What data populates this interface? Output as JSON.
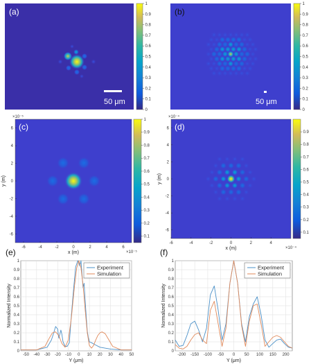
{
  "colors": {
    "bg_dark": "#3a2fa8",
    "bg_mid": "#3e3fcd",
    "experiment": "#4a90c8",
    "simulation": "#e0895a"
  },
  "chart_data": [
    {
      "id": "a",
      "type": "heatmap",
      "label": "(a)",
      "scale_bar": "50 μm",
      "colorbar_ticks": [
        "0",
        "0.1",
        "0.2",
        "0.3",
        "0.4",
        "0.5",
        "0.6",
        "0.7",
        "0.8",
        "0.9",
        "1"
      ],
      "clim": [
        0,
        1
      ]
    },
    {
      "id": "b",
      "type": "heatmap",
      "label": "(b)",
      "scale_bar": "50 μm",
      "colorbar_ticks": [
        "0",
        "0.1",
        "0.2",
        "0.3",
        "0.4",
        "0.5",
        "0.6",
        "0.7",
        "0.8",
        "0.9",
        "1"
      ],
      "clim": [
        0,
        1
      ]
    },
    {
      "id": "c",
      "type": "heatmap",
      "label": "(c)",
      "xlabel": "x (m)",
      "ylabel": "y (m)",
      "x_exponent": "×10⁻⁵",
      "y_exponent": "×10⁻⁵",
      "x_ticks": [
        "-6",
        "-4",
        "-2",
        "0",
        "2",
        "4",
        "6"
      ],
      "y_ticks": [
        "6",
        "4",
        "2",
        "0",
        "-2",
        "-4",
        "-6"
      ],
      "colorbar_ticks": [
        "0.1",
        "0.2",
        "0.3",
        "0.4",
        "0.5",
        "0.6",
        "0.7",
        "0.8",
        "0.9",
        "1"
      ],
      "xlim": [
        -7,
        7
      ],
      "ylim": [
        -7,
        7
      ],
      "clim": [
        0.05,
        1
      ]
    },
    {
      "id": "d",
      "type": "heatmap",
      "label": "(d)",
      "xlabel": "x (m)",
      "ylabel": "y (m)",
      "x_exponent": "×10⁻⁴",
      "y_exponent": "×10⁻⁴",
      "x_ticks": [
        "-6",
        "-4",
        "-2",
        "0",
        "2",
        "4"
      ],
      "y_ticks": [
        "6",
        "4",
        "2",
        "0",
        "-2",
        "-4",
        "-6"
      ],
      "colorbar_ticks": [
        "0.1",
        "0.2",
        "0.3",
        "0.4",
        "0.5",
        "0.6",
        "0.7",
        "0.8",
        "0.9"
      ],
      "xlim": [
        -6,
        6
      ],
      "ylim": [
        -7,
        7
      ],
      "clim": [
        0.05,
        1
      ]
    },
    {
      "id": "e",
      "type": "line",
      "label": "(e)",
      "xlabel": "Y (μm)",
      "ylabel": "Normalized Intensity",
      "xlim": [
        -55,
        50
      ],
      "ylim": [
        0,
        1
      ],
      "x_ticks": [
        "-50",
        "-40",
        "-30",
        "-20",
        "-10",
        "0",
        "10",
        "20",
        "30",
        "40",
        "50"
      ],
      "y_ticks": [
        "0",
        "0.1",
        "0.2",
        "0.3",
        "0.4",
        "0.5",
        "0.6",
        "0.7",
        "0.8",
        "0.9",
        "1"
      ],
      "legend_position": "top-right",
      "series": [
        {
          "name": "Experiment",
          "x": [
            -55,
            -40,
            -30,
            -26,
            -24,
            -22,
            -20,
            -19,
            -17,
            -16,
            -15,
            -13,
            -11,
            -9,
            -7,
            -5,
            -3,
            -1,
            0,
            1,
            2,
            3,
            4,
            5,
            6,
            7,
            8,
            9,
            10,
            12,
            15,
            20,
            30,
            40,
            50
          ],
          "y": [
            0.01,
            0.01,
            0.04,
            0.12,
            0.19,
            0.27,
            0.24,
            0.14,
            0.23,
            0.18,
            0.1,
            0.05,
            0.05,
            0.09,
            0.4,
            0.68,
            0.93,
            1,
            0.98,
            0.94,
            1,
            0.85,
            0.7,
            0.75,
            0.55,
            0.38,
            0.22,
            0.15,
            0.1,
            0.09,
            0.07,
            0.04,
            0.02,
            0.01,
            0.01
          ]
        },
        {
          "name": "Simulation",
          "x": [
            -55,
            -40,
            -32,
            -28,
            -25,
            -22,
            -19,
            -16,
            -13,
            -10,
            -7,
            -4,
            -2,
            0,
            2,
            4,
            6,
            8,
            10,
            12,
            14,
            16,
            18,
            20,
            22,
            25,
            28,
            32,
            40,
            50
          ],
          "y": [
            0.01,
            0.01,
            0.05,
            0.14,
            0.2,
            0.21,
            0.17,
            0.08,
            0.04,
            0.12,
            0.37,
            0.73,
            0.92,
            1,
            0.92,
            0.73,
            0.45,
            0.2,
            0.06,
            0.03,
            0.06,
            0.12,
            0.17,
            0.2,
            0.21,
            0.19,
            0.13,
            0.05,
            0.01,
            0.01
          ]
        }
      ]
    },
    {
      "id": "f",
      "type": "line",
      "label": "(f)",
      "xlabel": "Y (μm)",
      "ylabel": "Normalized Intensity",
      "xlim": [
        -225,
        225
      ],
      "ylim": [
        0,
        1
      ],
      "x_ticks": [
        "-200",
        "-150",
        "-100",
        "-50",
        "0",
        "50",
        "100",
        "150",
        "200"
      ],
      "y_ticks": [
        "0",
        "0.1",
        "0.2",
        "0.3",
        "0.4",
        "0.5",
        "0.6",
        "0.7",
        "0.8",
        "0.9",
        "1"
      ],
      "legend_position": "top-right",
      "series": [
        {
          "name": "Experiment",
          "x": [
            -225,
            -210,
            -195,
            -180,
            -165,
            -150,
            -135,
            -120,
            -105,
            -90,
            -75,
            -60,
            -45,
            -30,
            -15,
            0,
            15,
            30,
            45,
            60,
            75,
            90,
            105,
            120,
            135,
            150,
            165,
            180,
            195,
            210,
            225
          ],
          "y": [
            0.12,
            0.05,
            0.06,
            0.17,
            0.3,
            0.33,
            0.23,
            0.1,
            0.25,
            0.62,
            0.72,
            0.45,
            0.12,
            0.3,
            0.75,
            1,
            0.75,
            0.3,
            0.1,
            0.38,
            0.52,
            0.6,
            0.4,
            0.12,
            0.04,
            0.08,
            0.12,
            0.13,
            0.08,
            0.04,
            0.03
          ]
        },
        {
          "name": "Simulation",
          "x": [
            -225,
            -210,
            -195,
            -180,
            -165,
            -150,
            -135,
            -120,
            -105,
            -90,
            -75,
            -60,
            -45,
            -30,
            -15,
            0,
            15,
            30,
            45,
            60,
            75,
            90,
            105,
            120,
            135,
            150,
            165,
            180,
            195,
            210,
            225
          ],
          "y": [
            0.07,
            0.03,
            0.02,
            0.05,
            0.12,
            0.18,
            0.2,
            0.12,
            0.08,
            0.45,
            0.55,
            0.3,
            0.05,
            0.25,
            0.75,
            1,
            0.75,
            0.28,
            0.05,
            0.33,
            0.5,
            0.52,
            0.3,
            0.05,
            0.1,
            0.15,
            0.17,
            0.15,
            0.1,
            0.05,
            0.03
          ]
        }
      ]
    }
  ]
}
